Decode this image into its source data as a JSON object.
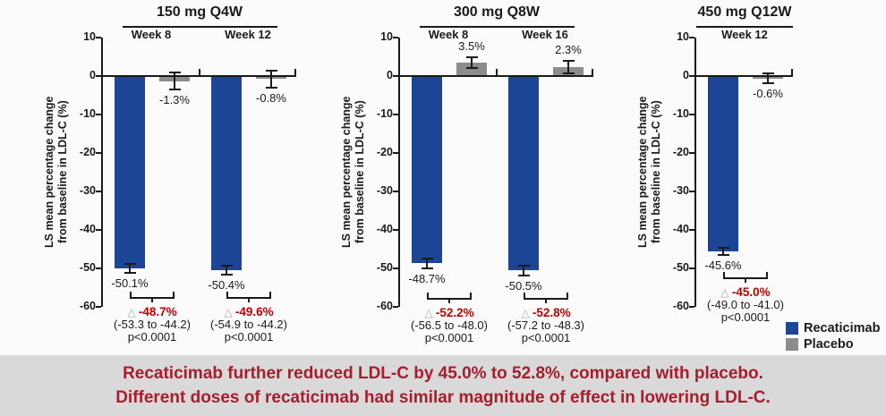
{
  "colors": {
    "recaticimab": "#1c4596",
    "placebo": "#8c8c8c",
    "diff_red": "#c00000",
    "delta_gray": "#a6a6a6",
    "banner_red": "#a81d2e",
    "banner_bg": "#d9d9d9",
    "axis": "#1a1a1a"
  },
  "chart_data": {
    "type": "bar",
    "ylabel": "LS mean percentage change\nfrom baseline in LDL-C (%)",
    "ylim": [
      -60,
      10
    ],
    "yticks": [
      10,
      0,
      -10,
      -20,
      -30,
      -40,
      -50,
      -60
    ],
    "grid": false,
    "legend_position": "bottom-right",
    "delta_symbol": "△",
    "panels": [
      {
        "title": "150 mg Q4W",
        "groups": [
          {
            "week": "Week 8",
            "bars": [
              {
                "series": "recaticimab",
                "value": -50.1,
                "label": "-50.1%",
                "err": 1.4
              },
              {
                "series": "placebo",
                "value": -1.3,
                "label": "-1.3%",
                "err": 2.4
              }
            ],
            "comparison": {
              "delta": "-48.7%",
              "ci": "(-53.3 to -44.2)",
              "p": "p<0.0001"
            }
          },
          {
            "week": "Week 12",
            "bars": [
              {
                "series": "recaticimab",
                "value": -50.4,
                "label": "-50.4%",
                "err": 1.4
              },
              {
                "series": "placebo",
                "value": -0.8,
                "label": "-0.8%",
                "err": 2.4
              }
            ],
            "comparison": {
              "delta": "-49.6%",
              "ci": "(-54.9 to -44.2)",
              "p": "p<0.0001"
            }
          }
        ]
      },
      {
        "title": "300 mg Q8W",
        "groups": [
          {
            "week": "Week 8",
            "bars": [
              {
                "series": "recaticimab",
                "value": -48.7,
                "label": "-48.7%",
                "err": 1.5
              },
              {
                "series": "placebo",
                "value": 3.5,
                "label": "3.5%",
                "err": 1.7
              }
            ],
            "comparison": {
              "delta": "-52.2%",
              "ci": "(-56.5 to -48.0)",
              "p": "p<0.0001"
            }
          },
          {
            "week": "Week 16",
            "bars": [
              {
                "series": "recaticimab",
                "value": -50.5,
                "label": "-50.5%",
                "err": 1.5
              },
              {
                "series": "placebo",
                "value": 2.3,
                "label": "2.3%",
                "err": 1.8
              }
            ],
            "comparison": {
              "delta": "-52.8%",
              "ci": "(-57.2 to -48.3)",
              "p": "p<0.0001"
            }
          }
        ]
      },
      {
        "title": "450 mg Q12W",
        "groups": [
          {
            "week": "Week 12",
            "bars": [
              {
                "series": "recaticimab",
                "value": -45.6,
                "label": "-45.6%",
                "err": 1.2
              },
              {
                "series": "placebo",
                "value": -0.6,
                "label": "-0.6%",
                "err": 1.6
              }
            ],
            "comparison": {
              "delta": "-45.0%",
              "ci": "(-49.0 to -41.0)",
              "p": "p<0.0001"
            }
          }
        ]
      }
    ]
  },
  "legend": {
    "items": [
      {
        "label": "Recaticimab",
        "series": "recaticimab",
        "color": "#1c4596"
      },
      {
        "label": "Placebo",
        "series": "placebo",
        "color": "#8c8c8c"
      }
    ]
  },
  "banner": {
    "line1": "Recaticimab further reduced LDL-C by 45.0% to 52.8%, compared with placebo.",
    "line2": "Different doses of recaticimab had similar magnitude of effect in lowering LDL-C."
  }
}
